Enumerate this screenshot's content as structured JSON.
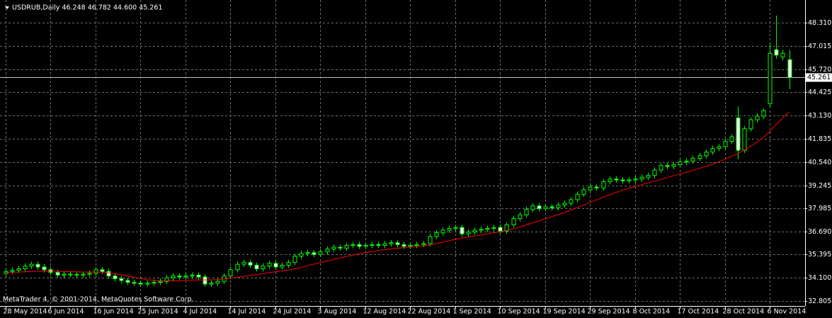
{
  "chart_data": {
    "type": "candlestick",
    "header": "USDRUB,Daily  46.248 46.782 44.600 45.261",
    "footer": "MetaTrader 4, © 2001-2014, MetaQuotes Software Corp.",
    "ylim": [
      32.53,
      49.57
    ],
    "yticks": [
      32.805,
      {
        "value": 34.1,
        "label": "34.100"
      },
      35.395,
      {
        "value": 36.69,
        "label": "36.690"
      },
      37.985,
      39.245,
      {
        "value": 40.54,
        "label": "40.540"
      },
      41.835,
      {
        "value": 43.13,
        "label": "43.130"
      },
      44.425,
      {
        "value": 45.72,
        "label": "45.720"
      },
      47.015,
      {
        "value": 48.31,
        "label": "48.310"
      }
    ],
    "grid": true,
    "categories": [
      "28 May 2014",
      null,
      null,
      null,
      null,
      null,
      null,
      "6 Jun 2014",
      null,
      null,
      null,
      null,
      null,
      null,
      "16 Jun 2014",
      null,
      null,
      null,
      null,
      null,
      null,
      "25 Jun 2014",
      null,
      null,
      null,
      null,
      null,
      null,
      "4 Jul 2014",
      null,
      null,
      null,
      null,
      null,
      null,
      "14 Jul 2014",
      null,
      null,
      null,
      null,
      null,
      null,
      "24 Jul 2014",
      null,
      null,
      null,
      null,
      null,
      null,
      "3 Aug 2014",
      null,
      null,
      null,
      null,
      null,
      null,
      "12 Aug 2014",
      null,
      null,
      null,
      null,
      null,
      null,
      "22 Aug 2014",
      null,
      null,
      null,
      null,
      null,
      null,
      "1 Sep 2014",
      null,
      null,
      null,
      null,
      null,
      null,
      "10 Sep 2014",
      null,
      null,
      null,
      null,
      null,
      null,
      "19 Sep 2014",
      null,
      null,
      null,
      null,
      null,
      null,
      "29 Sep 2014",
      null,
      null,
      null,
      null,
      null,
      null,
      "8 Oct 2014",
      null,
      null,
      null,
      null,
      null,
      null,
      "17 Oct 2014",
      null,
      null,
      null,
      null,
      null,
      null,
      "28 Oct 2014",
      null,
      null,
      null,
      null,
      null,
      null,
      "6 Nov 2014",
      null,
      null,
      null
    ],
    "candles": {
      "color": "#00ff00",
      "bull_fill": "#000000",
      "bear_fill": "#ffffff",
      "open": [
        34.35,
        34.45,
        34.52,
        34.6,
        34.75,
        34.85,
        34.7,
        34.55,
        34.4,
        34.25,
        34.3,
        34.28,
        34.25,
        34.3,
        34.35,
        34.55,
        34.45,
        34.2,
        34.05,
        33.95,
        33.85,
        33.8,
        33.75,
        33.8,
        33.85,
        33.9,
        34.1,
        34.2,
        34.15,
        34.2,
        34.25,
        34.15,
        33.75,
        33.8,
        33.9,
        34.2,
        34.55,
        34.85,
        34.95,
        34.8,
        34.6,
        34.75,
        34.9,
        34.7,
        34.8,
        34.95,
        35.3,
        35.45,
        35.5,
        35.4,
        35.55,
        35.7,
        35.8,
        35.75,
        35.9,
        35.95,
        35.85,
        35.9,
        35.95,
        35.9,
        36.0,
        36.05,
        35.95,
        35.85,
        35.9,
        35.95,
        36.0,
        36.4,
        36.6,
        36.75,
        36.85,
        36.9,
        36.55,
        36.65,
        36.75,
        36.8,
        36.85,
        36.9,
        36.7,
        37.05,
        37.4,
        37.6,
        37.9,
        38.1,
        37.95,
        38.05,
        38.0,
        38.15,
        38.25,
        38.45,
        38.75,
        39.0,
        39.15,
        39.1,
        39.45,
        39.6,
        39.55,
        39.5,
        39.55,
        39.6,
        39.7,
        39.8,
        40.1,
        40.35,
        40.3,
        40.4,
        40.55,
        40.6,
        40.75,
        40.9,
        41.1,
        41.3,
        41.4,
        41.7,
        43.0,
        41.2,
        42.4,
        42.9,
        43.1,
        43.8,
        46.8,
        46.4,
        46.248
      ],
      "high": [
        34.6,
        34.67,
        34.75,
        34.9,
        35.0,
        35.0,
        34.85,
        34.7,
        34.55,
        34.45,
        34.45,
        34.43,
        34.45,
        34.5,
        34.7,
        34.7,
        34.6,
        34.35,
        34.2,
        34.1,
        34.0,
        33.95,
        33.95,
        34.0,
        34.05,
        34.25,
        34.35,
        34.35,
        34.35,
        34.4,
        34.4,
        34.3,
        33.95,
        34.05,
        34.35,
        34.7,
        35.0,
        35.1,
        35.1,
        34.95,
        34.9,
        35.05,
        35.05,
        34.95,
        35.1,
        35.45,
        35.6,
        35.65,
        35.65,
        35.7,
        35.85,
        35.95,
        35.95,
        36.05,
        36.1,
        36.1,
        36.05,
        36.1,
        36.1,
        36.15,
        36.2,
        36.2,
        36.1,
        36.05,
        36.1,
        36.15,
        36.55,
        36.75,
        36.9,
        37.0,
        37.05,
        37.05,
        36.8,
        36.9,
        36.95,
        37.0,
        37.05,
        37.05,
        37.2,
        37.55,
        37.75,
        38.05,
        38.25,
        38.25,
        38.2,
        38.2,
        38.3,
        38.4,
        38.6,
        38.9,
        39.15,
        39.3,
        39.3,
        39.6,
        39.75,
        39.75,
        39.7,
        39.7,
        39.75,
        39.85,
        39.95,
        40.25,
        40.5,
        40.5,
        40.55,
        40.7,
        40.75,
        40.9,
        41.05,
        41.25,
        41.45,
        41.55,
        41.85,
        42.1,
        43.65,
        42.55,
        43.05,
        43.25,
        43.55,
        47.2,
        48.7,
        46.8,
        46.782
      ],
      "low": [
        34.2,
        34.3,
        34.37,
        34.45,
        34.6,
        34.55,
        34.4,
        34.25,
        34.1,
        34.1,
        34.13,
        34.1,
        34.1,
        34.15,
        34.2,
        34.3,
        34.05,
        33.9,
        33.8,
        33.7,
        33.65,
        33.6,
        33.6,
        33.65,
        33.7,
        33.75,
        33.95,
        34.0,
        34.0,
        34.05,
        34.0,
        33.6,
        33.6,
        33.65,
        33.75,
        34.05,
        34.4,
        34.7,
        34.65,
        34.45,
        34.45,
        34.6,
        34.55,
        34.55,
        34.65,
        34.8,
        35.15,
        35.3,
        35.25,
        35.25,
        35.4,
        35.55,
        35.6,
        35.6,
        35.75,
        35.7,
        35.7,
        35.75,
        35.75,
        35.75,
        35.85,
        35.8,
        35.7,
        35.7,
        35.75,
        35.8,
        35.85,
        36.25,
        36.45,
        36.6,
        36.7,
        36.4,
        36.4,
        36.5,
        36.6,
        36.65,
        36.7,
        36.55,
        36.55,
        36.9,
        37.25,
        37.45,
        37.75,
        37.8,
        37.8,
        37.85,
        37.85,
        38.0,
        38.1,
        38.3,
        38.6,
        38.85,
        38.95,
        38.95,
        39.3,
        39.4,
        39.35,
        39.35,
        39.4,
        39.45,
        39.55,
        39.65,
        39.95,
        40.15,
        40.15,
        40.25,
        40.4,
        40.45,
        40.6,
        40.75,
        40.95,
        41.15,
        41.25,
        41.55,
        40.7,
        41.05,
        42.25,
        42.75,
        42.95,
        43.6,
        46.3,
        46.2,
        44.6
      ],
      "close": [
        34.45,
        34.52,
        34.6,
        34.75,
        34.85,
        34.7,
        34.55,
        34.4,
        34.25,
        34.3,
        34.28,
        34.25,
        34.3,
        34.35,
        34.55,
        34.45,
        34.2,
        34.05,
        33.95,
        33.85,
        33.8,
        33.75,
        33.8,
        33.85,
        33.9,
        34.1,
        34.2,
        34.15,
        34.2,
        34.25,
        34.15,
        33.75,
        33.8,
        33.9,
        34.2,
        34.55,
        34.85,
        34.95,
        34.8,
        34.6,
        34.75,
        34.9,
        34.7,
        34.8,
        34.95,
        35.3,
        35.45,
        35.5,
        35.4,
        35.55,
        35.7,
        35.8,
        35.75,
        35.9,
        35.95,
        35.85,
        35.9,
        35.95,
        35.9,
        36.0,
        36.05,
        35.95,
        35.85,
        35.9,
        35.95,
        36.0,
        36.4,
        36.6,
        36.75,
        36.85,
        36.9,
        36.55,
        36.65,
        36.75,
        36.8,
        36.85,
        36.9,
        36.7,
        37.05,
        37.4,
        37.6,
        37.9,
        38.1,
        37.95,
        38.05,
        38.0,
        38.15,
        38.25,
        38.45,
        38.75,
        39.0,
        39.15,
        39.1,
        39.45,
        39.6,
        39.55,
        39.5,
        39.55,
        39.6,
        39.7,
        39.8,
        40.1,
        40.35,
        40.3,
        40.4,
        40.55,
        40.6,
        40.75,
        40.9,
        41.1,
        41.3,
        41.4,
        41.7,
        41.95,
        41.2,
        42.4,
        42.9,
        43.1,
        43.4,
        46.6,
        46.5,
        46.6,
        45.261
      ]
    },
    "series": [
      {
        "color": "#ff0000",
        "values": [
          34.4,
          34.4,
          34.42,
          34.43,
          34.45,
          34.46,
          34.47,
          34.47,
          34.46,
          34.45,
          34.44,
          34.43,
          34.42,
          34.42,
          34.42,
          34.41,
          34.38,
          34.33,
          34.27,
          34.2,
          34.13,
          34.06,
          34.0,
          33.96,
          33.94,
          33.93,
          33.93,
          33.94,
          33.95,
          33.97,
          33.98,
          33.98,
          33.99,
          34.0,
          34.03,
          34.07,
          34.12,
          34.18,
          34.23,
          34.28,
          34.33,
          34.38,
          34.43,
          34.48,
          34.53,
          34.6,
          34.68,
          34.77,
          34.86,
          34.95,
          35.03,
          35.12,
          35.2,
          35.28,
          35.36,
          35.43,
          35.5,
          35.56,
          35.62,
          35.67,
          35.71,
          35.75,
          35.78,
          35.81,
          35.84,
          35.87,
          35.93,
          36.0,
          36.08,
          36.16,
          36.24,
          36.31,
          36.37,
          36.43,
          36.49,
          36.55,
          36.61,
          36.66,
          36.73,
          36.82,
          36.92,
          37.03,
          37.15,
          37.26,
          37.38,
          37.5,
          37.62,
          37.74,
          37.86,
          38.0,
          38.15,
          38.3,
          38.44,
          38.58,
          38.72,
          38.85,
          38.97,
          39.08,
          39.18,
          39.28,
          39.38,
          39.48,
          39.58,
          39.68,
          39.78,
          39.88,
          39.98,
          40.08,
          40.19,
          40.3,
          40.42,
          40.55,
          40.7,
          40.86,
          41.02,
          41.2,
          41.42,
          41.66,
          41.92,
          42.25,
          42.65,
          43.0,
          43.35
        ]
      }
    ]
  }
}
